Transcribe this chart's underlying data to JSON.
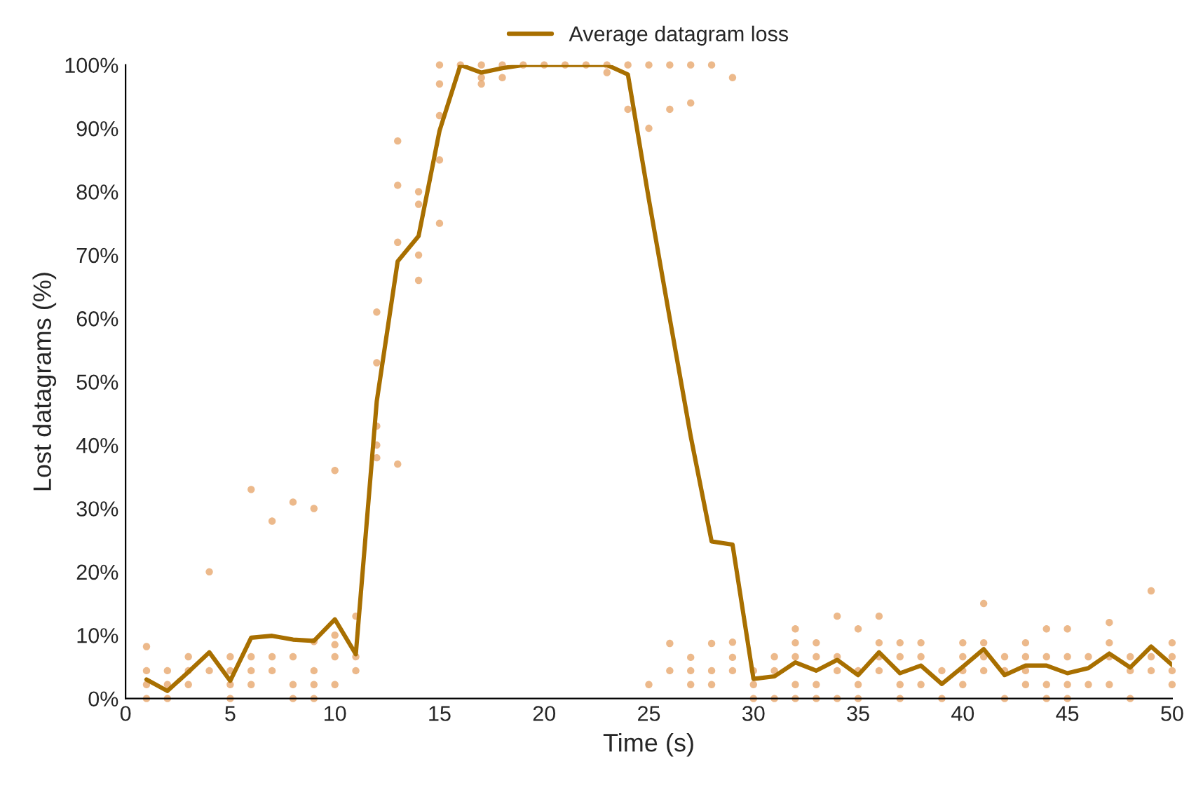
{
  "chart_data": {
    "type": "line",
    "xlabel": "Time (s)",
    "ylabel": "Lost datagrams (%)",
    "xlim": [
      0,
      50
    ],
    "ylim": [
      0,
      100
    ],
    "xticks": [
      0,
      5,
      10,
      15,
      20,
      25,
      30,
      35,
      40,
      45,
      50
    ],
    "yticks": [
      {
        "value": 0,
        "label": "0%"
      },
      {
        "value": 10,
        "label": "10%"
      },
      {
        "value": 20,
        "label": "20%"
      },
      {
        "value": 30,
        "label": "30%"
      },
      {
        "value": 40,
        "label": "40%"
      },
      {
        "value": 50,
        "label": "50%"
      },
      {
        "value": 60,
        "label": "60%"
      },
      {
        "value": 70,
        "label": "70%"
      },
      {
        "value": 80,
        "label": "80%"
      },
      {
        "value": 90,
        "label": "90%"
      },
      {
        "value": 100,
        "label": "100%"
      }
    ],
    "grid": false,
    "legend": "top",
    "series": [
      {
        "type": "scatter",
        "color": "#e5a264",
        "marker": "circle",
        "x": [
          1,
          1,
          1,
          1,
          2,
          2,
          2,
          3,
          3,
          3,
          4,
          4,
          5,
          5,
          5,
          5,
          6,
          6,
          6,
          6,
          7,
          7,
          7,
          8,
          8,
          8,
          8,
          9,
          9,
          9,
          9,
          9,
          10,
          10,
          10,
          10,
          10,
          11,
          11,
          11,
          12,
          12,
          12,
          12,
          12,
          13,
          13,
          13,
          13,
          14,
          14,
          14,
          14,
          15,
          15,
          15,
          15,
          15,
          16,
          17,
          17,
          17,
          18,
          18,
          19,
          20,
          21,
          22,
          23,
          23,
          24,
          24,
          25,
          25,
          26,
          26,
          27,
          27,
          28,
          29,
          25,
          26,
          26,
          27,
          27,
          27,
          28,
          28,
          28,
          29,
          29,
          29,
          30,
          30,
          30,
          31,
          31,
          31,
          32,
          32,
          32,
          32,
          32,
          33,
          33,
          33,
          33,
          34,
          34,
          34,
          34,
          35,
          35,
          35,
          35,
          36,
          36,
          36,
          36,
          37,
          37,
          37,
          37,
          38,
          38,
          38,
          39,
          39,
          40,
          40,
          40,
          40,
          41,
          41,
          41,
          41,
          42,
          42,
          42,
          43,
          43,
          43,
          43,
          44,
          44,
          44,
          44,
          45,
          45,
          45,
          45,
          46,
          46,
          47,
          47,
          47,
          47,
          48,
          48,
          48,
          49,
          49,
          49,
          50,
          50,
          50,
          50
        ],
        "values": [
          0,
          2.2,
          4.4,
          8.2,
          0,
          2.2,
          4.4,
          2.2,
          4.4,
          6.6,
          4.4,
          20,
          0,
          2.2,
          4.4,
          6.6,
          2.2,
          4.4,
          6.6,
          33,
          4.4,
          6.6,
          28,
          0,
          2.2,
          6.6,
          31,
          0,
          2.2,
          4.4,
          9,
          30,
          2.2,
          6.6,
          8.5,
          10,
          36,
          4.4,
          6.6,
          13,
          61,
          53,
          43,
          40,
          38,
          88,
          81,
          72,
          37,
          80,
          78,
          70,
          66,
          100,
          97,
          92,
          85,
          75,
          100,
          100,
          98,
          97,
          100,
          98,
          100,
          100,
          100,
          100,
          100,
          98.8,
          100,
          93,
          100,
          90,
          100,
          93,
          100,
          94,
          100,
          98,
          2.2,
          8.7,
          4.4,
          6.5,
          4.4,
          2.2,
          8.7,
          4.4,
          2.2,
          8.9,
          6.5,
          4.4,
          0,
          2.2,
          4.4,
          0,
          4.4,
          6.6,
          0,
          2.2,
          6.6,
          8.8,
          11,
          0,
          2.2,
          6.6,
          8.8,
          0,
          4.4,
          6.6,
          13,
          0,
          2.2,
          4.4,
          11,
          4.4,
          6.6,
          8.8,
          13,
          0,
          2.2,
          6.6,
          8.8,
          2.2,
          6.6,
          8.8,
          0,
          4.4,
          2.2,
          4.4,
          6.6,
          8.8,
          4.4,
          6.6,
          8.8,
          15,
          0,
          4.4,
          6.6,
          2.2,
          4.4,
          6.6,
          8.8,
          0,
          2.2,
          6.6,
          11,
          0,
          2.2,
          6.6,
          11,
          2.2,
          6.6,
          2.2,
          6.6,
          8.8,
          12,
          0,
          4.4,
          6.6,
          4.4,
          6.6,
          17,
          2.2,
          4.4,
          6.6,
          8.8
        ]
      },
      {
        "name": "Average datagram loss",
        "color": "#a86f00",
        "marker": "none",
        "line_style": "solid",
        "x": [
          1,
          2,
          3,
          4,
          5,
          6,
          7,
          8,
          9,
          10,
          11,
          12,
          13,
          14,
          15,
          16,
          17,
          18,
          19,
          20,
          21,
          22,
          23,
          24,
          25,
          26,
          27,
          28,
          29,
          30,
          31,
          32,
          33,
          34,
          35,
          36,
          37,
          38,
          39,
          40,
          41,
          42,
          43,
          44,
          45,
          46,
          47,
          48,
          49,
          50
        ],
        "values": [
          3,
          1.2,
          4.2,
          7.3,
          2.8,
          9.6,
          9.9,
          9.3,
          9.1,
          12.5,
          7,
          46.9,
          69,
          73,
          89.6,
          100,
          98.8,
          99.5,
          100,
          100,
          100,
          100,
          100,
          98.5,
          78.8,
          60,
          41.4,
          24.8,
          24.3,
          3.1,
          3.5,
          5.7,
          4.4,
          6.1,
          3.7,
          7.3,
          4,
          5.2,
          2.3,
          5,
          7.8,
          3.7,
          5.2,
          5.2,
          4,
          4.8,
          7.1,
          4.9,
          8.2,
          5.3
        ]
      }
    ]
  }
}
